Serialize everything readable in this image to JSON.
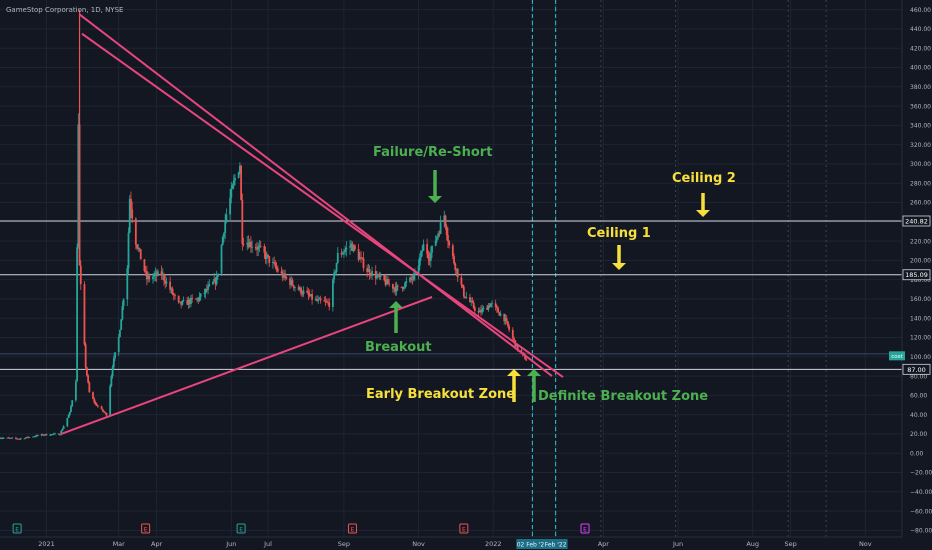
{
  "header": {
    "symbol_title": "GameStop Corporation, 1D, NYSE"
  },
  "colors": {
    "background": "#131722",
    "grid": "#1f2433",
    "axis_text": "#b2b5be",
    "candle_up": "#26a69a",
    "candle_down": "#ef5350",
    "trendline": "#e8457e",
    "level_line": "#d1d4dc",
    "yellow_annotation": "#f7e03c",
    "green_annotation": "#4caf50",
    "cycle_marker": "#26c6da",
    "price_tag_bg": "#131722",
    "current_tag_bg": "#26a69a"
  },
  "chart_data": {
    "type": "candlestick",
    "title": "GameStop Corporation, 1D, NYSE",
    "y_axis": {
      "side": "right",
      "ylim": [
        -90,
        470
      ],
      "ticks": [
        460,
        440,
        420,
        400,
        380,
        360,
        340,
        320,
        300,
        280,
        260,
        240,
        220,
        200,
        180,
        160,
        140,
        120,
        100,
        80,
        60,
        40,
        20,
        0,
        -20,
        -40,
        -60,
        -80
      ],
      "tick_labels": [
        "460.00",
        "440.00",
        "420.00",
        "400.00",
        "380.00",
        "360.00",
        "340.00",
        "320.00",
        "300.00",
        "280.00",
        "260.00",
        "240.00",
        "220.00",
        "200.00",
        "180.00",
        "160.00",
        "140.00",
        "120.00",
        "100.00",
        "80.00",
        "60.00",
        "40.00",
        "20.00",
        "0.00",
        "−20.00",
        "−40.00",
        "−60.00",
        "−80.00"
      ]
    },
    "x_axis": {
      "range": [
        "2020-11-24",
        "2022-12-01"
      ],
      "ticks": [
        {
          "date": "2021-01-01",
          "label": "2021"
        },
        {
          "date": "2021-03-01",
          "label": "Mar"
        },
        {
          "date": "2021-04-01",
          "label": "Apr"
        },
        {
          "date": "2021-06-01",
          "label": "Jun"
        },
        {
          "date": "2021-07-01",
          "label": "Jul"
        },
        {
          "date": "2021-09-01",
          "label": "Sep"
        },
        {
          "date": "2021-11-01",
          "label": "Nov"
        },
        {
          "date": "2022-01-01",
          "label": "2022"
        },
        {
          "date": "2022-04-01",
          "label": "Apr"
        },
        {
          "date": "2022-06-01",
          "label": "Jun"
        },
        {
          "date": "2022-08-01",
          "label": "Aug"
        },
        {
          "date": "2022-09-01",
          "label": "Sep"
        },
        {
          "date": "2022-11-01",
          "label": "Nov"
        }
      ],
      "highlight_labels": [
        {
          "date": "2022-02-02",
          "label": "02 Feb '22"
        },
        {
          "date": "2022-02-21",
          "label": "Feb '22"
        }
      ]
    },
    "grid": true,
    "price_path": [
      [
        "2020-11-24",
        16
      ],
      [
        "2020-12-10",
        15
      ],
      [
        "2020-12-28",
        19
      ],
      [
        "2021-01-12",
        20
      ],
      [
        "2021-01-20",
        42
      ],
      [
        "2021-01-25",
        76
      ],
      [
        "2021-01-27",
        347
      ],
      [
        "2021-01-28",
        193
      ],
      [
        "2021-02-02",
        90
      ],
      [
        "2021-02-05",
        63
      ],
      [
        "2021-02-10",
        51
      ],
      [
        "2021-02-19",
        40
      ],
      [
        "2021-02-24",
        91
      ],
      [
        "2021-03-01",
        120
      ],
      [
        "2021-03-08",
        194
      ],
      [
        "2021-03-10",
        265
      ],
      [
        "2021-03-15",
        220
      ],
      [
        "2021-03-24",
        181
      ],
      [
        "2021-04-05",
        186
      ],
      [
        "2021-04-19",
        154
      ],
      [
        "2021-05-05",
        160
      ],
      [
        "2021-05-20",
        180
      ],
      [
        "2021-05-27",
        242
      ],
      [
        "2021-06-04",
        285
      ],
      [
        "2021-06-08",
        300
      ],
      [
        "2021-06-10",
        222
      ],
      [
        "2021-06-24",
        212
      ],
      [
        "2021-07-12",
        185
      ],
      [
        "2021-07-26",
        170
      ],
      [
        "2021-08-09",
        158
      ],
      [
        "2021-08-20",
        155
      ],
      [
        "2021-08-27",
        205
      ],
      [
        "2021-09-07",
        216
      ],
      [
        "2021-09-20",
        190
      ],
      [
        "2021-10-04",
        178
      ],
      [
        "2021-10-15",
        170
      ],
      [
        "2021-10-29",
        183
      ],
      [
        "2021-11-05",
        215
      ],
      [
        "2021-11-10",
        204
      ],
      [
        "2021-11-22",
        247
      ],
      [
        "2021-11-26",
        215
      ],
      [
        "2021-12-08",
        165
      ],
      [
        "2021-12-20",
        145
      ],
      [
        "2021-12-30",
        155
      ],
      [
        "2022-01-10",
        140
      ],
      [
        "2022-01-20",
        110
      ],
      [
        "2022-01-28",
        97
      ]
    ],
    "levels": [
      {
        "label": "240.82",
        "value": 240.82
      },
      {
        "label": "185.09",
        "value": 185.09
      },
      {
        "label": "87.00",
        "value": 87.0
      }
    ],
    "current_price": {
      "label": "cost",
      "value": 101
    },
    "thin_level": {
      "value": 103
    },
    "trendlines": [
      {
        "name": "upper-resistance-a",
        "from": [
          "2021-01-28",
          455
        ],
        "to": [
          "2022-02-18",
          80
        ]
      },
      {
        "name": "upper-resistance-b",
        "from": [
          "2021-01-30",
          435
        ],
        "to": [
          "2022-02-27",
          79
        ]
      },
      {
        "name": "rising-support",
        "from": [
          "2021-01-13",
          20
        ],
        "to": [
          "2021-11-12",
          162
        ]
      }
    ],
    "cycle_markers": [
      "2022-02-02",
      "2022-02-21",
      "2022-03-30",
      "2022-05-30",
      "2022-08-30",
      "2022-09-30"
    ],
    "event_markers": [
      {
        "date": "2020-12-08",
        "type": "E",
        "color": "#26a69a"
      },
      {
        "date": "2021-03-23",
        "type": "E",
        "color": "#ef5350"
      },
      {
        "date": "2021-06-09",
        "type": "E",
        "color": "#26a69a"
      },
      {
        "date": "2021-09-08",
        "type": "E",
        "color": "#ef5350"
      },
      {
        "date": "2021-12-08",
        "type": "E",
        "color": "#ef5350"
      },
      {
        "date": "2022-03-17",
        "type": "E",
        "color": "#e040fb"
      }
    ]
  },
  "annotations": {
    "failure": "Failure/Re-Short",
    "breakout": "Breakout",
    "ceiling1": "Ceiling 1",
    "ceiling2": "Ceiling 2",
    "early_zone": "Early Breakout Zone",
    "definite_zone": "Definite Breakout Zone"
  }
}
